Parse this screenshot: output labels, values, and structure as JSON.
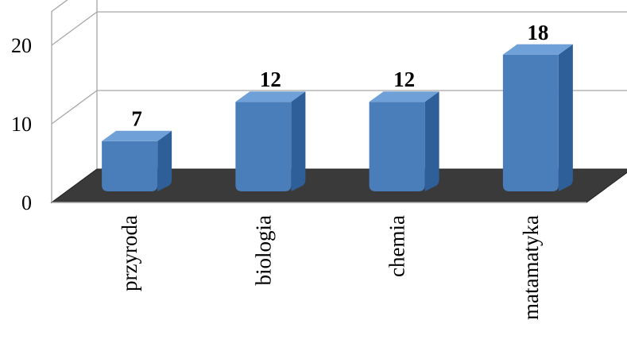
{
  "chart_data": {
    "type": "bar",
    "categories": [
      "przyroda",
      "biologia",
      "chemia",
      "matamatyka"
    ],
    "values": [
      7,
      12,
      12,
      18
    ],
    "data_labels": [
      "7",
      "12",
      "12",
      "18"
    ],
    "y_ticks": [
      "0",
      "10",
      "20"
    ],
    "ylim": [
      0,
      20
    ],
    "grid": true,
    "three_d": true,
    "colors": {
      "bar_front": "#4a7ebb",
      "bar_side": "#2f5f98",
      "bar_top": "#6fa0d8",
      "floor": "#3a3a3a",
      "grid": "#a6a6a6"
    }
  }
}
